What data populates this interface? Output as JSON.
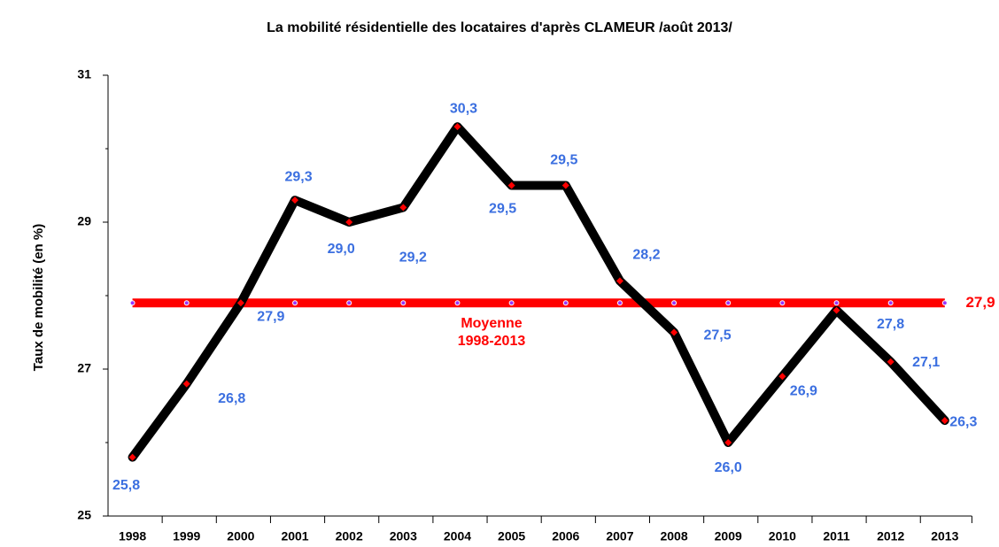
{
  "chart_data": {
    "type": "line",
    "title": "La mobilité résidentielle des locataires d'après CLAMEUR /août 2013/",
    "y_label": "Taux de mobilité (en %)",
    "categories": [
      "1998",
      "1999",
      "2000",
      "2001",
      "2002",
      "2003",
      "2004",
      "2005",
      "2006",
      "2007",
      "2008",
      "2009",
      "2010",
      "2011",
      "2012",
      "2013"
    ],
    "series": [
      {
        "color": "#000000",
        "marker_color": "#ff0000",
        "values": [
          25.8,
          26.8,
          27.9,
          29.3,
          29.0,
          29.2,
          30.3,
          29.5,
          29.5,
          28.2,
          27.5,
          26.0,
          26.9,
          27.8,
          27.1,
          26.3
        ],
        "value_labels": [
          "25,8",
          "26,8",
          "27,9",
          "29,3",
          "29,0",
          "29,2",
          "30,3",
          "29,5",
          "29,5",
          "28,2",
          "27,5",
          "26,0",
          "26,9",
          "27,8",
          "27,1",
          "26,3"
        ]
      }
    ],
    "mean": {
      "value": 27.9,
      "label": "27,9",
      "color": "#ff0000",
      "marker_color": "#9933ff"
    },
    "annotation": [
      "Moyenne",
      "1998-2013"
    ],
    "label_color": "#3b6fe0",
    "ylim": [
      25,
      31
    ],
    "yticks": [
      25,
      27,
      29,
      31
    ],
    "minor_yticks": [
      26,
      28,
      30
    ],
    "grid": false
  }
}
